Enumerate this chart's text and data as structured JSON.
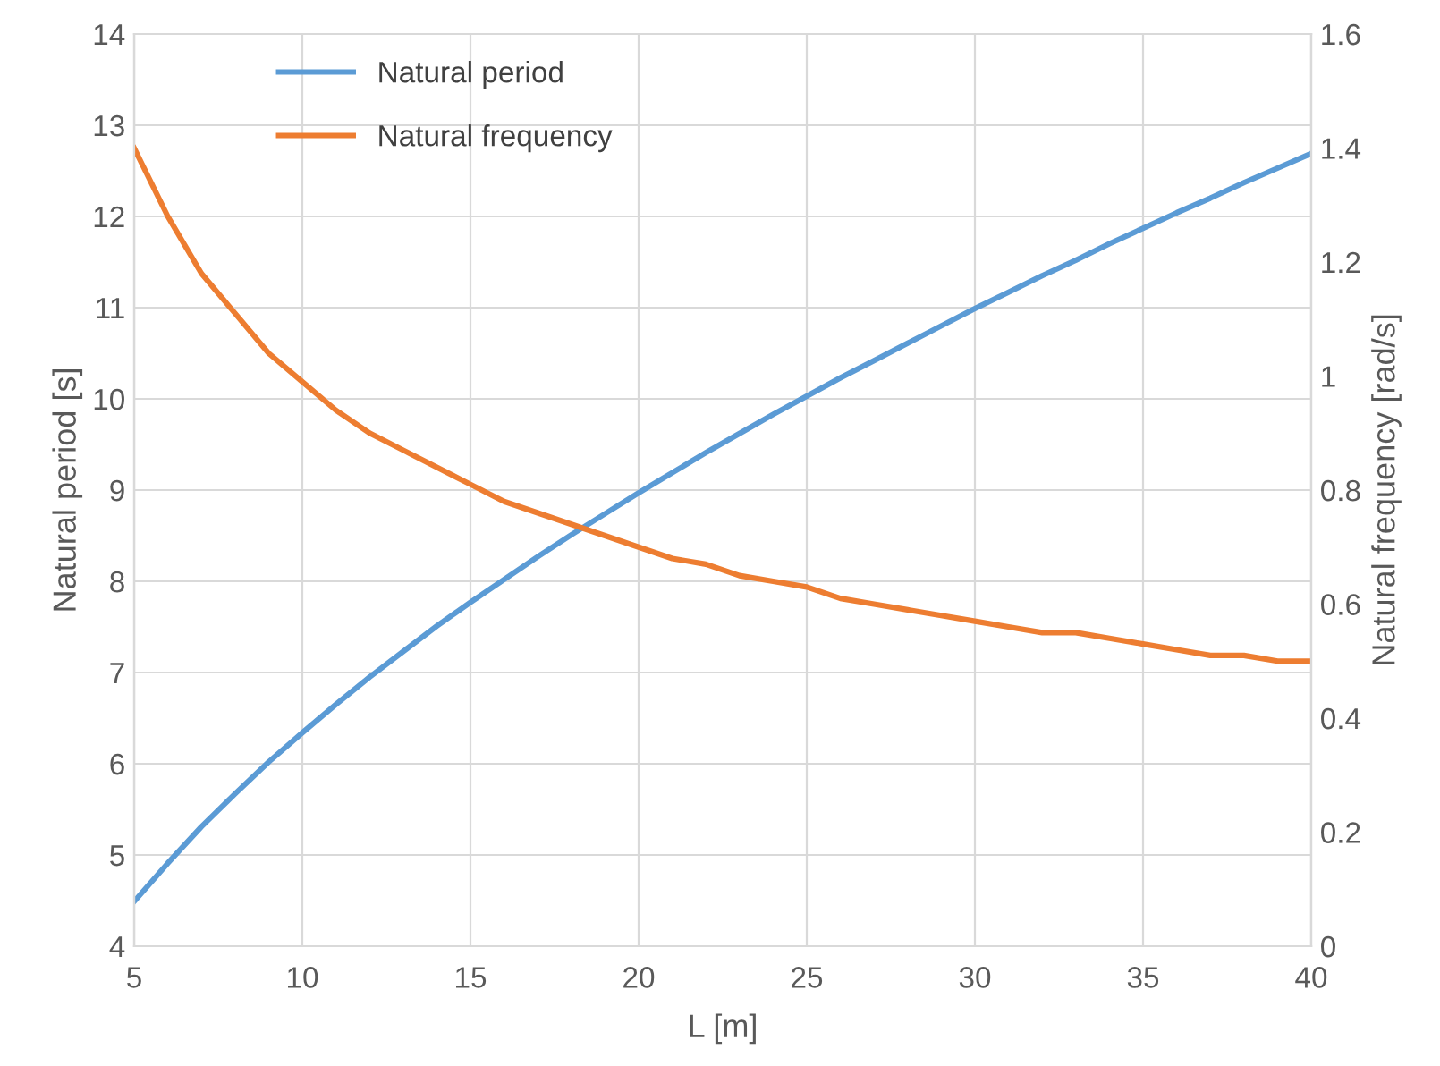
{
  "chart_data": {
    "type": "line",
    "xlabel": "L [m]",
    "ylabel": "Natural period [s]",
    "y2label": "Natural frequency [rad/s]",
    "x": [
      5,
      6,
      7,
      8,
      9,
      10,
      11,
      12,
      13,
      14,
      15,
      16,
      17,
      18,
      19,
      20,
      21,
      22,
      23,
      24,
      25,
      26,
      27,
      28,
      29,
      30,
      31,
      32,
      33,
      34,
      35,
      36,
      37,
      38,
      39,
      40
    ],
    "series": [
      {
        "name": "Natural period",
        "color": "#5b9bd5",
        "values": [
          4.49,
          4.91,
          5.31,
          5.67,
          6.02,
          6.34,
          6.65,
          6.95,
          7.23,
          7.51,
          7.77,
          8.02,
          8.27,
          8.51,
          8.74,
          8.97,
          9.19,
          9.41,
          9.62,
          9.83,
          10.03,
          10.23,
          10.42,
          10.61,
          10.8,
          10.99,
          11.17,
          11.35,
          11.52,
          11.7,
          11.87,
          12.04,
          12.2,
          12.37,
          12.53,
          12.69
        ]
      },
      {
        "name": "Natural frequency",
        "color": "#ed7d31",
        "axis": "y2",
        "values": [
          1.4,
          1.28,
          1.18,
          1.11,
          1.04,
          0.99,
          0.94,
          0.9,
          0.87,
          0.84,
          0.81,
          0.78,
          0.76,
          0.74,
          0.72,
          0.7,
          0.68,
          0.67,
          0.65,
          0.64,
          0.63,
          0.61,
          0.6,
          0.59,
          0.58,
          0.57,
          0.56,
          0.55,
          0.55,
          0.54,
          0.53,
          0.52,
          0.51,
          0.51,
          0.5,
          0.5
        ]
      }
    ],
    "xlim": [
      5,
      40
    ],
    "xticks": [
      5,
      10,
      15,
      20,
      25,
      30,
      35,
      40
    ],
    "ylim": [
      4,
      14
    ],
    "yticks": [
      4,
      5,
      6,
      7,
      8,
      9,
      10,
      11,
      12,
      13,
      14
    ],
    "y2lim": [
      0,
      1.6
    ],
    "y2ticks": [
      0,
      0.2,
      0.4,
      0.6,
      0.8,
      1,
      1.2,
      1.4,
      1.6
    ],
    "grid": true,
    "legend": "top left",
    "marker": "none",
    "line_style": "solid"
  }
}
